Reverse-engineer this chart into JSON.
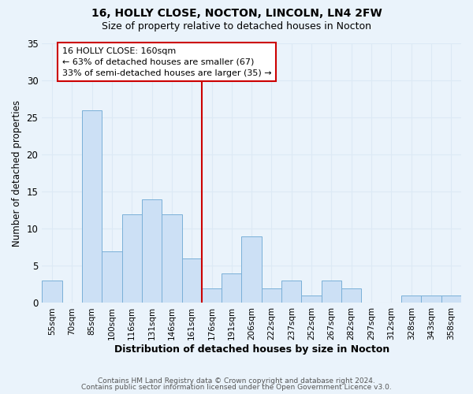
{
  "title": "16, HOLLY CLOSE, NOCTON, LINCOLN, LN4 2FW",
  "subtitle": "Size of property relative to detached houses in Nocton",
  "xlabel": "Distribution of detached houses by size in Nocton",
  "ylabel": "Number of detached properties",
  "footer_line1": "Contains HM Land Registry data © Crown copyright and database right 2024.",
  "footer_line2": "Contains public sector information licensed under the Open Government Licence v3.0.",
  "bin_labels": [
    "55sqm",
    "70sqm",
    "85sqm",
    "100sqm",
    "116sqm",
    "131sqm",
    "146sqm",
    "161sqm",
    "176sqm",
    "191sqm",
    "206sqm",
    "222sqm",
    "237sqm",
    "252sqm",
    "267sqm",
    "282sqm",
    "297sqm",
    "312sqm",
    "328sqm",
    "343sqm",
    "358sqm"
  ],
  "bin_values": [
    3,
    0,
    26,
    7,
    12,
    14,
    12,
    6,
    2,
    4,
    9,
    2,
    3,
    1,
    3,
    2,
    0,
    0,
    1,
    1,
    1
  ],
  "bar_color": "#cce0f5",
  "bar_edge_color": "#7ab0d8",
  "vline_x_index": 7.5,
  "vline_color": "#cc0000",
  "annotation_line1": "16 HOLLY CLOSE: 160sqm",
  "annotation_line2": "← 63% of detached houses are smaller (67)",
  "annotation_line3": "33% of semi-detached houses are larger (35) →",
  "annotation_box_color": "#ffffff",
  "annotation_box_edge": "#cc0000",
  "ylim": [
    0,
    35
  ],
  "yticks": [
    0,
    5,
    10,
    15,
    20,
    25,
    30,
    35
  ],
  "grid_color": "#dce9f5",
  "bg_color": "#eaf3fb",
  "title_fontsize": 10,
  "subtitle_fontsize": 9
}
